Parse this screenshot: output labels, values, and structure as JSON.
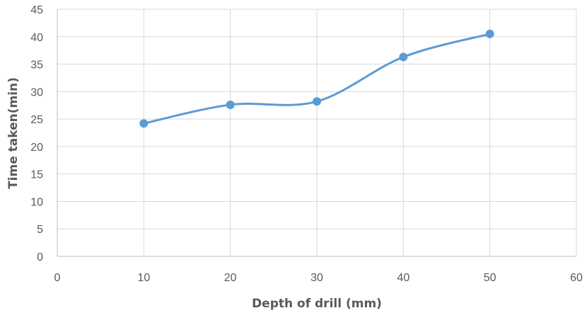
{
  "chart_data": {
    "type": "scatter",
    "title": "",
    "xlabel": "Depth of drill (mm)",
    "ylabel": "Time taken(min)",
    "xlim": [
      0,
      60
    ],
    "ylim": [
      0,
      45
    ],
    "x_ticks": [
      "0",
      "10",
      "20",
      "30",
      "40",
      "50",
      "60"
    ],
    "y_ticks": [
      "0",
      "5",
      "10",
      "15",
      "20",
      "25",
      "30",
      "35",
      "40",
      "45"
    ],
    "grid": true,
    "legend": "none",
    "smooth_line": true,
    "series": [
      {
        "x": [
          10,
          20,
          30,
          40,
          50
        ],
        "y": [
          24.2,
          27.6,
          28.2,
          36.3,
          40.5
        ],
        "color": "#5B9BD5"
      }
    ]
  }
}
